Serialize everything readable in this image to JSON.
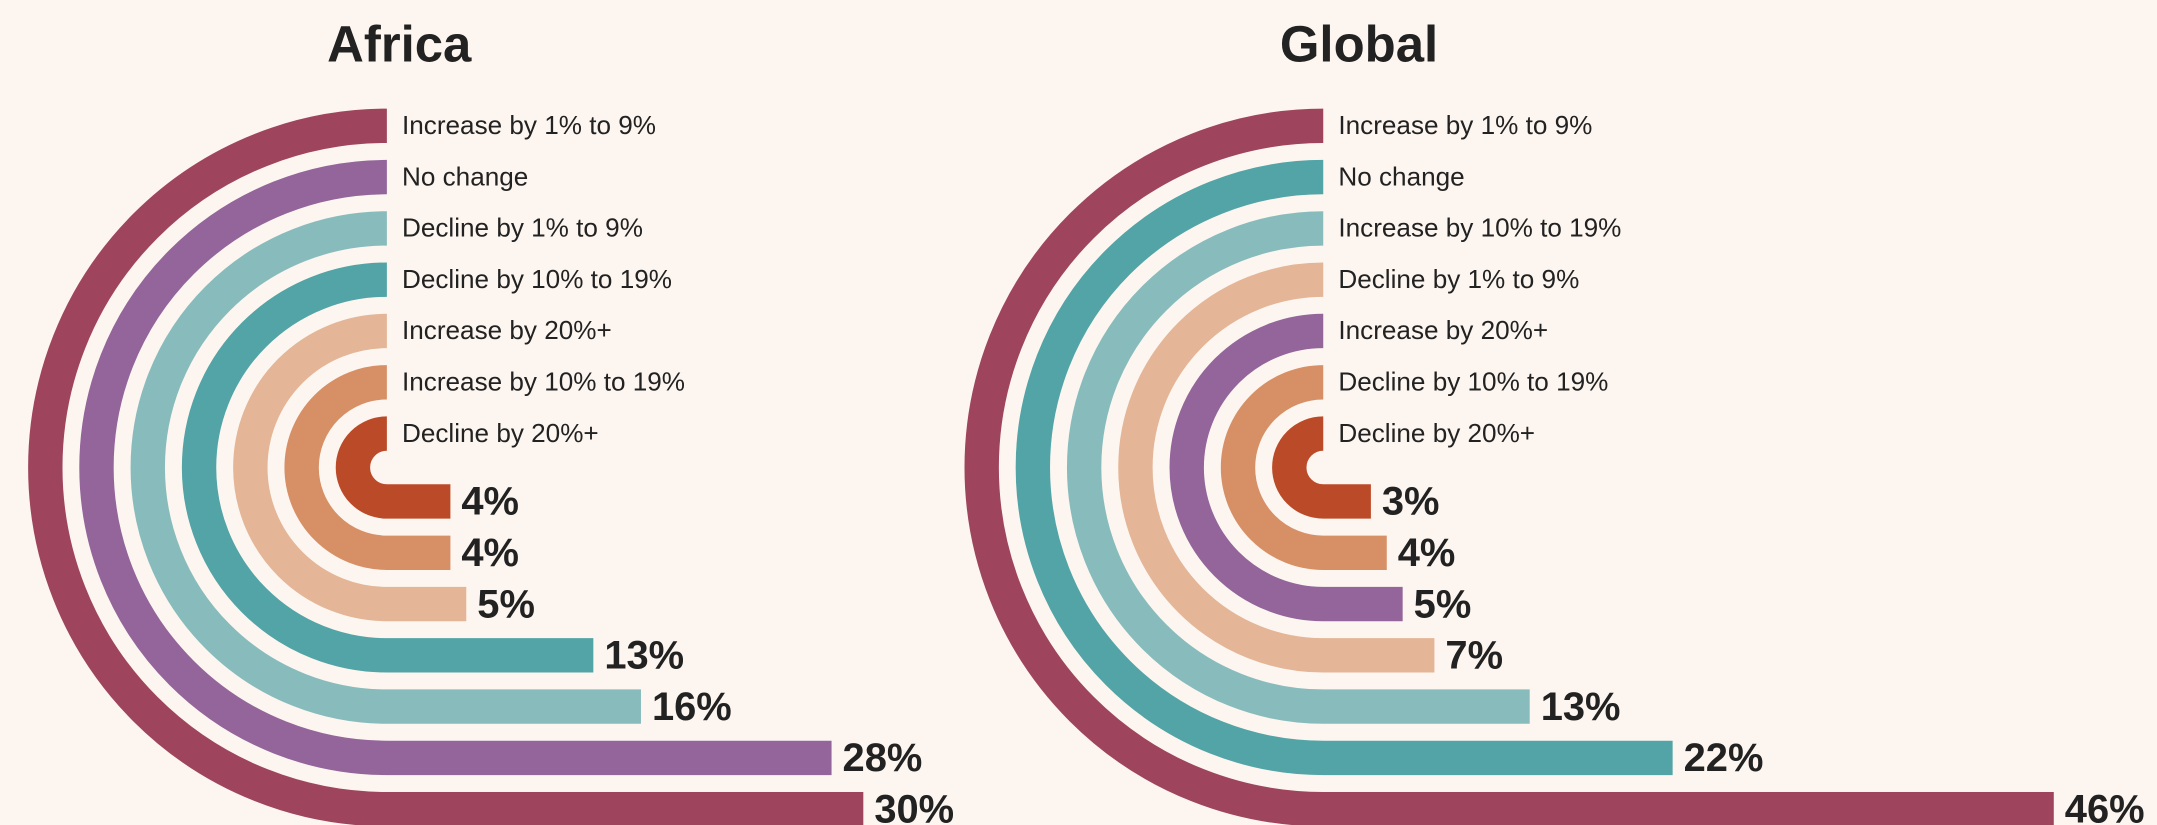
{
  "chart_data": [
    {
      "type": "radial_bar",
      "title": "Africa",
      "categories": [
        "Increase by 1% to 9%",
        "No change",
        "Decline by 1% to 9%",
        "Decline by 10% to 19%",
        "Increase by 20%+",
        "Increase by 10% to 19%",
        "Decline by 20%+"
      ],
      "values": [
        30,
        28,
        16,
        13,
        5,
        4,
        4
      ],
      "value_labels": [
        "30%",
        "28%",
        "16%",
        "13%",
        "5%",
        "4%",
        "4%"
      ],
      "colors": [
        "#9e455d",
        "#93659b",
        "#88bcbc",
        "#52a4a6",
        "#e4b596",
        "#d78f66",
        "#bb4a28"
      ]
    },
    {
      "type": "radial_bar",
      "title": "Global",
      "categories": [
        "Increase by 1% to 9%",
        "No change",
        "Increase by 10% to 19%",
        "Decline by 1% to 9%",
        "Increase by 20%+",
        "Decline by 10% to 19%",
        "Decline by 20%+"
      ],
      "values": [
        46,
        22,
        13,
        7,
        5,
        4,
        3
      ],
      "value_labels": [
        "46%",
        "22%",
        "13%",
        "7%",
        "5%",
        "4%",
        "3%"
      ],
      "colors": [
        "#9e455d",
        "#52a4a6",
        "#88bcbc",
        "#e4b596",
        "#93659b",
        "#d78f66",
        "#bb4a28"
      ]
    }
  ]
}
